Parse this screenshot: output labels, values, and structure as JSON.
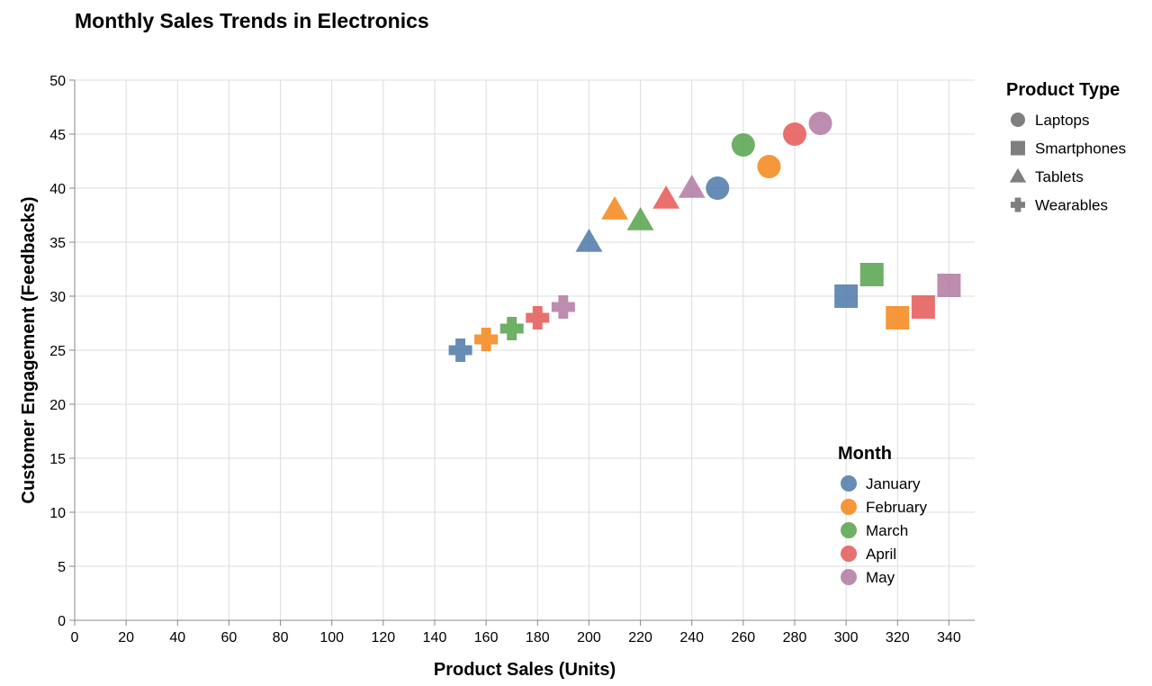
{
  "chart_data": {
    "type": "scatter",
    "title": "Monthly Sales Trends in Electronics",
    "xlabel": "Product Sales (Units)",
    "ylabel": "Customer Engagement (Feedbacks)",
    "xlim": [
      0,
      350
    ],
    "ylim": [
      0,
      50
    ],
    "x_ticks": [
      0,
      20,
      40,
      60,
      80,
      100,
      120,
      140,
      160,
      180,
      200,
      220,
      240,
      260,
      280,
      300,
      320,
      340
    ],
    "y_ticks": [
      0,
      5,
      10,
      15,
      20,
      25,
      30,
      35,
      40,
      45,
      50
    ],
    "grid": true,
    "legends": {
      "shape": {
        "title": "Product Type",
        "position": "top-right",
        "items": [
          {
            "label": "Laptops",
            "shape": "circle"
          },
          {
            "label": "Smartphones",
            "shape": "square"
          },
          {
            "label": "Tablets",
            "shape": "triangle"
          },
          {
            "label": "Wearables",
            "shape": "cross"
          }
        ]
      },
      "color": {
        "title": "Month",
        "position": "bottom-right",
        "items": [
          {
            "label": "January",
            "color": "#4c78a8"
          },
          {
            "label": "February",
            "color": "#f58518"
          },
          {
            "label": "March",
            "color": "#54a24b"
          },
          {
            "label": "April",
            "color": "#e45756"
          },
          {
            "label": "May",
            "color": "#b279a2"
          }
        ]
      }
    },
    "points": [
      {
        "month": "January",
        "product": "Laptops",
        "x": 250,
        "y": 40
      },
      {
        "month": "January",
        "product": "Smartphones",
        "x": 300,
        "y": 30
      },
      {
        "month": "January",
        "product": "Tablets",
        "x": 200,
        "y": 35
      },
      {
        "month": "January",
        "product": "Wearables",
        "x": 150,
        "y": 25
      },
      {
        "month": "February",
        "product": "Laptops",
        "x": 270,
        "y": 42
      },
      {
        "month": "February",
        "product": "Smartphones",
        "x": 320,
        "y": 28
      },
      {
        "month": "February",
        "product": "Tablets",
        "x": 210,
        "y": 38
      },
      {
        "month": "February",
        "product": "Wearables",
        "x": 160,
        "y": 26
      },
      {
        "month": "March",
        "product": "Laptops",
        "x": 260,
        "y": 44
      },
      {
        "month": "March",
        "product": "Smartphones",
        "x": 310,
        "y": 32
      },
      {
        "month": "March",
        "product": "Tablets",
        "x": 220,
        "y": 37
      },
      {
        "month": "March",
        "product": "Wearables",
        "x": 170,
        "y": 27
      },
      {
        "month": "April",
        "product": "Laptops",
        "x": 280,
        "y": 45
      },
      {
        "month": "April",
        "product": "Smartphones",
        "x": 330,
        "y": 29
      },
      {
        "month": "April",
        "product": "Tablets",
        "x": 230,
        "y": 39
      },
      {
        "month": "April",
        "product": "Wearables",
        "x": 180,
        "y": 28
      },
      {
        "month": "May",
        "product": "Laptops",
        "x": 290,
        "y": 46
      },
      {
        "month": "May",
        "product": "Smartphones",
        "x": 340,
        "y": 31
      },
      {
        "month": "May",
        "product": "Tablets",
        "x": 240,
        "y": 40
      },
      {
        "month": "May",
        "product": "Wearables",
        "x": 190,
        "y": 29
      }
    ]
  }
}
